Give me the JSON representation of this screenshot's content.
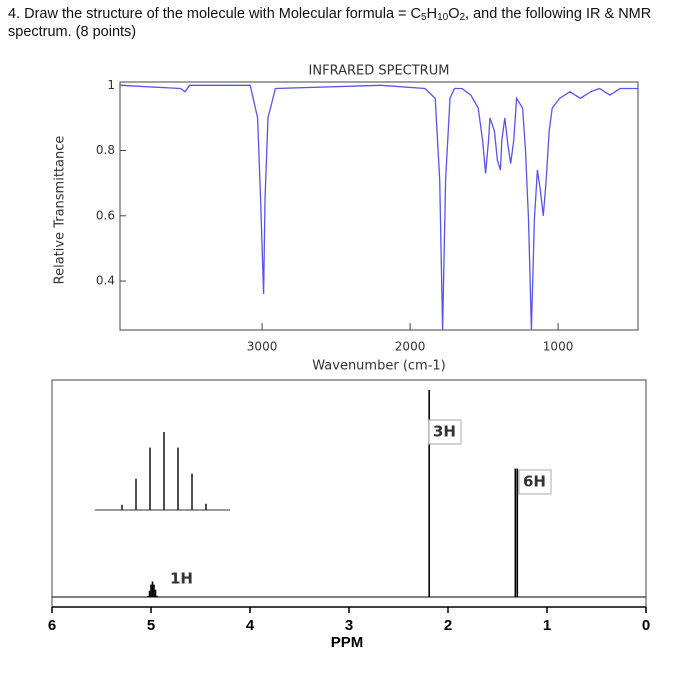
{
  "question": {
    "before": "4.  Draw the structure of the molecule with Molecular formula = ",
    "formula": [
      "C",
      "5",
      "H",
      "10",
      "O",
      "2"
    ],
    "after": ", and the following IR & NMR spectrum. (8 points)"
  },
  "chart_data": [
    {
      "type": "line",
      "title": "INFRARED SPECTRUM",
      "xlabel": "Wavenumber (cm-1)",
      "ylabel": "Relative Transmittance",
      "color": "#5555e8",
      "x": [
        3960,
        3550,
        3520,
        3490,
        3080,
        3030,
        3010,
        2990,
        2980,
        2960,
        2910,
        2200,
        1900,
        1830,
        1800,
        1780,
        1760,
        1730,
        1700,
        1650,
        1590,
        1540,
        1510,
        1490,
        1470,
        1460,
        1430,
        1410,
        1390,
        1380,
        1360,
        1340,
        1320,
        1300,
        1280,
        1240,
        1220,
        1200,
        1180,
        1160,
        1140,
        1120,
        1100,
        1080,
        1060,
        1040,
        990,
        920,
        850,
        780,
        720,
        650,
        580,
        510,
        460
      ],
      "values": [
        1.0,
        0.99,
        0.98,
        1.0,
        1.0,
        0.9,
        0.65,
        0.36,
        0.65,
        0.9,
        0.99,
        1.0,
        0.99,
        0.96,
        0.71,
        0.25,
        0.71,
        0.96,
        0.99,
        0.99,
        0.97,
        0.93,
        0.83,
        0.73,
        0.83,
        0.9,
        0.86,
        0.77,
        0.74,
        0.83,
        0.9,
        0.82,
        0.76,
        0.83,
        0.96,
        0.93,
        0.8,
        0.59,
        0.25,
        0.59,
        0.74,
        0.68,
        0.6,
        0.71,
        0.86,
        0.93,
        0.96,
        0.98,
        0.96,
        0.98,
        0.99,
        0.97,
        0.99,
        0.99,
        0.99
      ],
      "xlim": [
        3960,
        460
      ],
      "ylim": [
        0.25,
        1.01
      ],
      "xticks": [
        3000,
        2000,
        1000
      ],
      "yticks": [
        0.4,
        0.6,
        0.8,
        1
      ]
    },
    {
      "type": "stick",
      "xlabel": "PPM",
      "color": "#000000",
      "x": [
        5.03,
        5.015,
        5.0,
        4.985,
        4.97,
        4.955,
        4.94,
        2.19,
        1.32,
        1.3
      ],
      "values": [
        0.005,
        0.03,
        0.06,
        0.075,
        0.06,
        0.035,
        0.006,
        1.0,
        0.62,
        0.62
      ],
      "xlim": [
        6,
        0
      ],
      "xticks": [
        6,
        5,
        4,
        3,
        2,
        1,
        0
      ],
      "annotations": [
        "3H",
        "6H",
        "1H"
      ]
    }
  ]
}
